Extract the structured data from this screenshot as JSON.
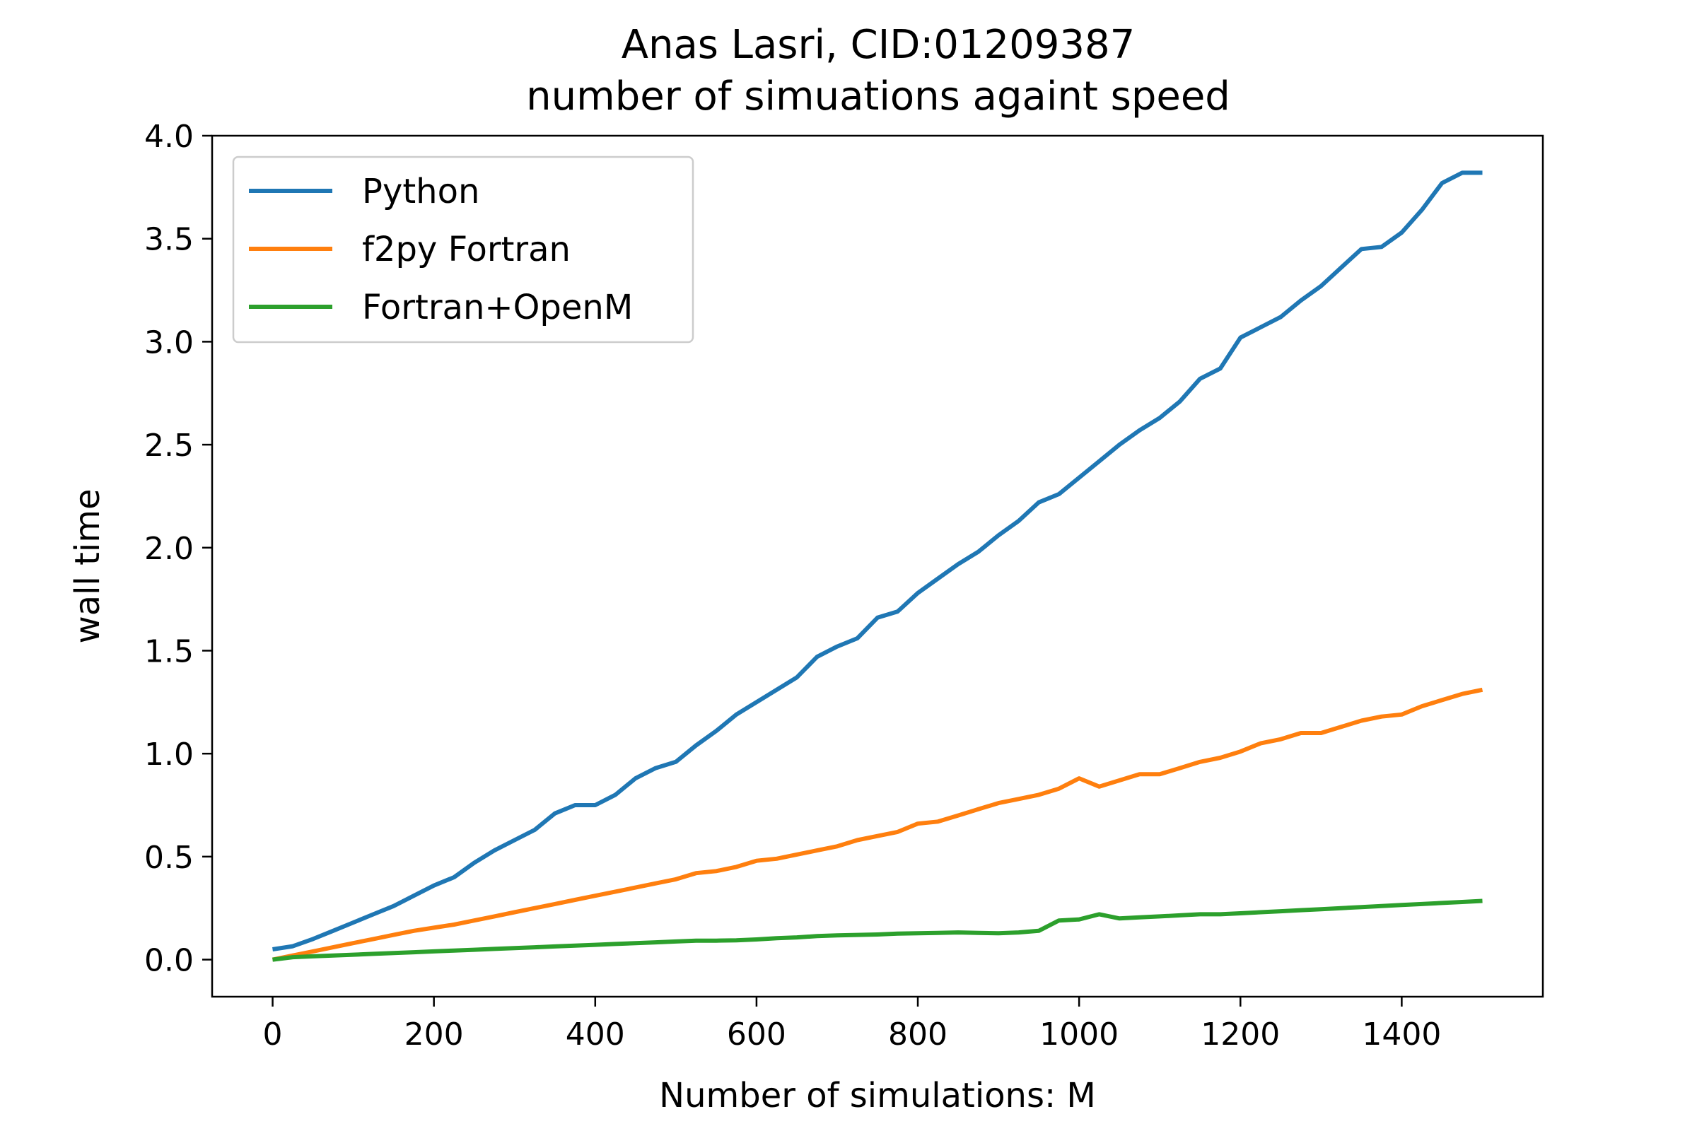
{
  "chart_data": {
    "type": "line",
    "title": [
      "Anas Lasri, CID:01209387",
      "number of simuations againt speed"
    ],
    "xlabel": "Number of simulations: M",
    "ylabel": "wall time",
    "xlim": [
      -75,
      1575
    ],
    "ylim": [
      -0.18,
      4.0
    ],
    "xticks": [
      0,
      200,
      400,
      600,
      800,
      1000,
      1200,
      1400
    ],
    "yticks": [
      0.0,
      0.5,
      1.0,
      1.5,
      2.0,
      2.5,
      3.0,
      3.5,
      4.0
    ],
    "xtick_labels": [
      "0",
      "200",
      "400",
      "600",
      "800",
      "1000",
      "1200",
      "1400"
    ],
    "ytick_labels": [
      "0.0",
      "0.5",
      "1.0",
      "1.5",
      "2.0",
      "2.5",
      "3.0",
      "3.5",
      "4.0"
    ],
    "grid": false,
    "legend_position": "upper-left",
    "x": [
      0,
      25,
      50,
      75,
      100,
      125,
      150,
      175,
      200,
      225,
      250,
      275,
      300,
      325,
      350,
      375,
      400,
      425,
      450,
      475,
      500,
      525,
      550,
      575,
      600,
      625,
      650,
      675,
      700,
      725,
      750,
      775,
      800,
      825,
      850,
      875,
      900,
      925,
      950,
      975,
      1000,
      1025,
      1050,
      1075,
      1100,
      1125,
      1150,
      1175,
      1200,
      1225,
      1250,
      1275,
      1300,
      1325,
      1350,
      1375,
      1400,
      1425,
      1450,
      1475,
      1500
    ],
    "series": [
      {
        "name": "Python",
        "color": "#1f77b4",
        "values": [
          0.05,
          0.065,
          0.1,
          0.14,
          0.18,
          0.22,
          0.26,
          0.31,
          0.36,
          0.4,
          0.47,
          0.53,
          0.58,
          0.63,
          0.71,
          0.75,
          0.75,
          0.8,
          0.88,
          0.93,
          0.96,
          1.04,
          1.11,
          1.19,
          1.25,
          1.31,
          1.37,
          1.47,
          1.52,
          1.56,
          1.66,
          1.69,
          1.78,
          1.85,
          1.92,
          1.98,
          2.06,
          2.13,
          2.22,
          2.26,
          2.34,
          2.42,
          2.5,
          2.57,
          2.63,
          2.71,
          2.82,
          2.87,
          3.02,
          3.07,
          3.12,
          3.2,
          3.27,
          3.36,
          3.45,
          3.46,
          3.53,
          3.64,
          3.77,
          3.82,
          3.82
        ]
      },
      {
        "name": "f2py Fortran",
        "color": "#ff7f0e",
        "values": [
          0.0,
          0.02,
          0.04,
          0.06,
          0.08,
          0.1,
          0.12,
          0.14,
          0.155,
          0.17,
          0.19,
          0.21,
          0.23,
          0.25,
          0.27,
          0.29,
          0.31,
          0.33,
          0.35,
          0.37,
          0.39,
          0.42,
          0.43,
          0.45,
          0.48,
          0.49,
          0.51,
          0.53,
          0.55,
          0.58,
          0.6,
          0.62,
          0.66,
          0.67,
          0.7,
          0.73,
          0.76,
          0.78,
          0.8,
          0.83,
          0.88,
          0.84,
          0.87,
          0.9,
          0.9,
          0.93,
          0.96,
          0.98,
          1.01,
          1.05,
          1.07,
          1.1,
          1.1,
          1.13,
          1.16,
          1.18,
          1.19,
          1.23,
          1.26,
          1.29,
          1.31
        ]
      },
      {
        "name": "Fortran+OpenM",
        "color": "#2ca02c",
        "values": [
          0.0,
          0.012,
          0.016,
          0.02,
          0.024,
          0.028,
          0.032,
          0.036,
          0.04,
          0.044,
          0.048,
          0.052,
          0.056,
          0.06,
          0.064,
          0.068,
          0.072,
          0.076,
          0.08,
          0.084,
          0.088,
          0.092,
          0.092,
          0.094,
          0.098,
          0.104,
          0.108,
          0.114,
          0.118,
          0.12,
          0.122,
          0.126,
          0.128,
          0.13,
          0.132,
          0.13,
          0.128,
          0.132,
          0.14,
          0.19,
          0.195,
          0.22,
          0.2,
          0.205,
          0.21,
          0.215,
          0.22,
          0.22,
          0.225,
          0.23,
          0.235,
          0.24,
          0.245,
          0.25,
          0.255,
          0.26,
          0.265,
          0.27,
          0.275,
          0.28,
          0.285
        ]
      }
    ]
  }
}
